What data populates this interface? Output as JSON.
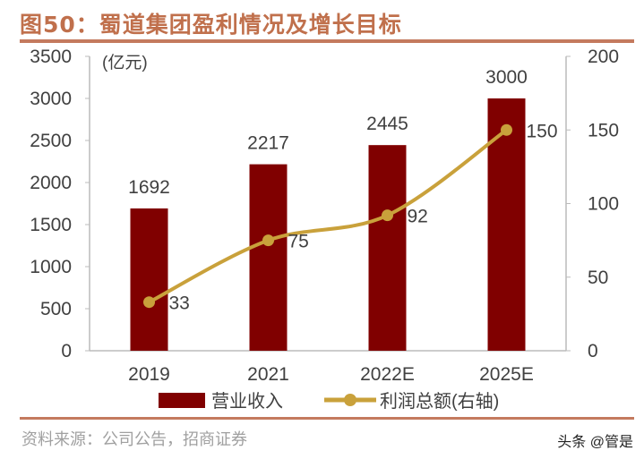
{
  "title": "图50：蜀道集团盈利情况及增长目标",
  "source": "资料来源：公司公告，招商证券",
  "watermark": "头条 @管是",
  "colors": {
    "bar": "#800000",
    "line": "#c9a13b",
    "title": "#c0704c",
    "rule": "#c47a5e"
  },
  "chart_data": {
    "type": "bar+line",
    "unit_label": "(亿元)",
    "categories": [
      "2019",
      "2021",
      "2022E",
      "2025E"
    ],
    "series": [
      {
        "name": "营业收入",
        "type": "bar",
        "axis": "left",
        "values": [
          1692,
          2217,
          2445,
          3000
        ]
      },
      {
        "name": "利润总额(右轴)",
        "type": "line",
        "axis": "right",
        "values": [
          33,
          75,
          92,
          150
        ]
      }
    ],
    "y_left": {
      "range": [
        0,
        3500
      ],
      "ticks": [
        0,
        500,
        1000,
        1500,
        2000,
        2500,
        3000,
        3500
      ]
    },
    "y_right": {
      "range": [
        0,
        200
      ],
      "ticks": [
        0,
        50,
        100,
        150,
        200
      ]
    },
    "grid": false,
    "legend_position": "bottom"
  }
}
